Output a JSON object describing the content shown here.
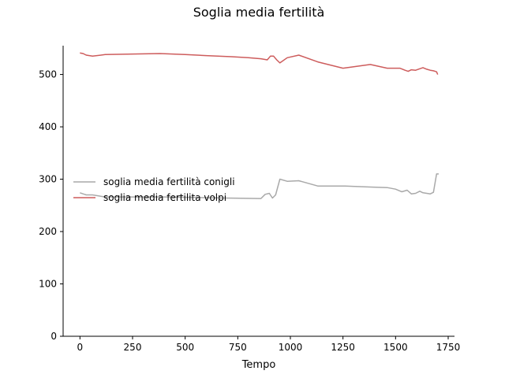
{
  "chart_data": {
    "type": "line",
    "title": "Soglia media fertilità",
    "xlabel": "Tempo",
    "ylabel": "",
    "xlim": [
      -80,
      1780
    ],
    "ylim": [
      0,
      555
    ],
    "xticks": [
      0,
      250,
      500,
      750,
      1000,
      1250,
      1500,
      1750
    ],
    "yticks": [
      0,
      100,
      200,
      300,
      400,
      500
    ],
    "grid": false,
    "legend_position": "center-left",
    "series": [
      {
        "name": "soglia media fertilità conigli",
        "color": "#a9a9a9",
        "x": [
          0,
          15,
          30,
          60,
          120,
          250,
          400,
          550,
          700,
          860,
          880,
          900,
          915,
          930,
          950,
          985,
          1040,
          1130,
          1260,
          1380,
          1460,
          1500,
          1530,
          1555,
          1575,
          1595,
          1615,
          1630,
          1648,
          1665,
          1680,
          1695,
          1705
        ],
        "y": [
          274,
          272,
          270,
          270,
          266,
          266,
          266,
          265,
          264,
          263,
          271,
          273,
          264,
          270,
          300,
          296,
          297,
          287,
          287,
          285,
          284,
          281,
          276,
          279,
          272,
          273,
          277,
          274,
          273,
          272,
          275,
          310,
          310
        ]
      },
      {
        "name": "soglia media fertilita volpi",
        "color": "#cd5c5c",
        "x": [
          0,
          15,
          30,
          60,
          120,
          250,
          380,
          500,
          600,
          720,
          800,
          860,
          890,
          905,
          920,
          935,
          950,
          985,
          1040,
          1130,
          1250,
          1380,
          1460,
          1520,
          1545,
          1560,
          1575,
          1595,
          1615,
          1630,
          1648,
          1665,
          1680,
          1695,
          1700
        ],
        "y": [
          541,
          540,
          537,
          535,
          538,
          539,
          540,
          538,
          536,
          534,
          532,
          530,
          528,
          535,
          535,
          528,
          522,
          532,
          537,
          524,
          512,
          519,
          512,
          512,
          508,
          506,
          509,
          508,
          511,
          513,
          510,
          508,
          507,
          505,
          500
        ]
      }
    ]
  }
}
